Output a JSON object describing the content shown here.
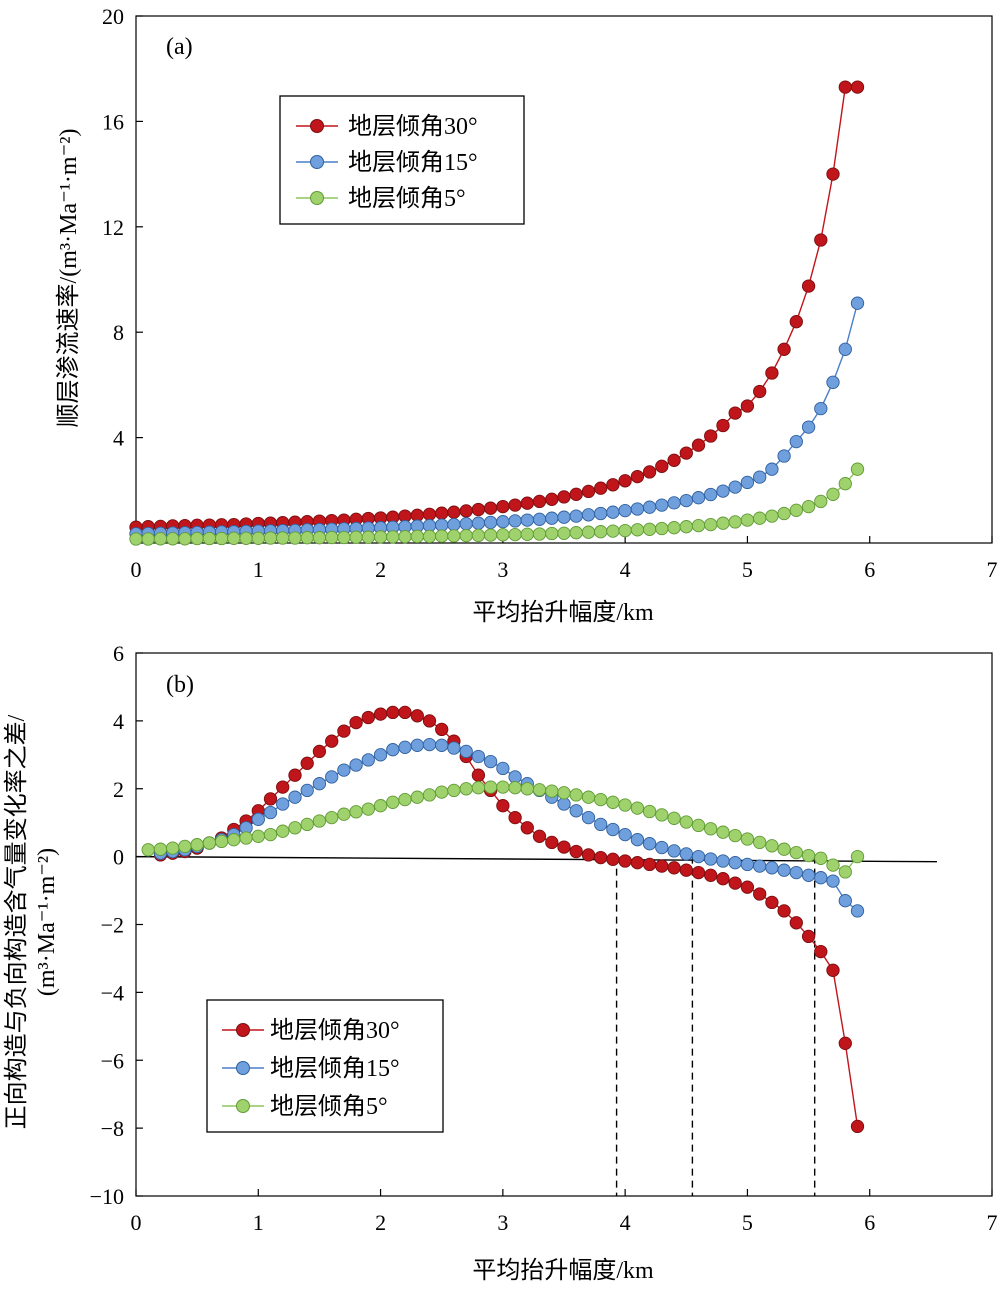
{
  "chart_data": [
    {
      "type": "line",
      "panel_label": "(a)",
      "xlabel": "平均抬升幅度/km",
      "ylabel": "顺层渗流速率/(m³·Ma⁻¹·m⁻²)",
      "xlim": [
        0,
        7
      ],
      "ylim": [
        0,
        20
      ],
      "xticks": [
        "0",
        "1",
        "2",
        "3",
        "4",
        "5",
        "6",
        "7"
      ],
      "yticks": [
        "4",
        "8",
        "12",
        "16",
        "20"
      ],
      "legend_position": "top-left",
      "series": [
        {
          "name": "地层倾角30°",
          "color": "#c0151b",
          "x": [
            0.0,
            0.1,
            0.2,
            0.3,
            0.4,
            0.5,
            0.6,
            0.7,
            0.8,
            0.9,
            1.0,
            1.1,
            1.2,
            1.3,
            1.4,
            1.5,
            1.6,
            1.7,
            1.8,
            1.9,
            2.0,
            2.1,
            2.2,
            2.3,
            2.4,
            2.5,
            2.6,
            2.7,
            2.8,
            2.9,
            3.0,
            3.1,
            3.2,
            3.3,
            3.4,
            3.5,
            3.6,
            3.7,
            3.8,
            3.9,
            4.0,
            4.1,
            4.2,
            4.3,
            4.4,
            4.5,
            4.6,
            4.7,
            4.8,
            4.9,
            5.0,
            5.1,
            5.2,
            5.3,
            5.4,
            5.5,
            5.6,
            5.7,
            5.8,
            5.9
          ],
          "values": [
            0.6,
            0.62,
            0.63,
            0.65,
            0.66,
            0.67,
            0.68,
            0.69,
            0.7,
            0.72,
            0.74,
            0.75,
            0.77,
            0.79,
            0.81,
            0.83,
            0.85,
            0.87,
            0.9,
            0.93,
            0.95,
            0.98,
            1.02,
            1.05,
            1.09,
            1.13,
            1.17,
            1.22,
            1.27,
            1.32,
            1.38,
            1.44,
            1.51,
            1.58,
            1.66,
            1.75,
            1.85,
            1.96,
            2.08,
            2.21,
            2.36,
            2.52,
            2.7,
            2.91,
            3.14,
            3.41,
            3.71,
            4.06,
            4.46,
            4.93,
            5.2,
            5.75,
            6.45,
            7.35,
            8.4,
            9.75,
            11.5,
            14.0,
            17.3,
            17.3
          ]
        },
        {
          "name": "地层倾角15°",
          "color": "#4a7fc8",
          "x": [
            0.0,
            0.1,
            0.2,
            0.3,
            0.4,
            0.5,
            0.6,
            0.7,
            0.8,
            0.9,
            1.0,
            1.1,
            1.2,
            1.3,
            1.4,
            1.5,
            1.6,
            1.7,
            1.8,
            1.9,
            2.0,
            2.1,
            2.2,
            2.3,
            2.4,
            2.5,
            2.6,
            2.7,
            2.8,
            2.9,
            3.0,
            3.1,
            3.2,
            3.3,
            3.4,
            3.5,
            3.6,
            3.7,
            3.8,
            3.9,
            4.0,
            4.1,
            4.2,
            4.3,
            4.4,
            4.5,
            4.6,
            4.7,
            4.8,
            4.9,
            5.0,
            5.1,
            5.2,
            5.3,
            5.4,
            5.5,
            5.6,
            5.7,
            5.8,
            5.9
          ],
          "values": [
            0.35,
            0.36,
            0.37,
            0.38,
            0.39,
            0.4,
            0.41,
            0.42,
            0.43,
            0.44,
            0.45,
            0.46,
            0.47,
            0.48,
            0.5,
            0.51,
            0.52,
            0.54,
            0.55,
            0.57,
            0.58,
            0.6,
            0.62,
            0.64,
            0.66,
            0.68,
            0.7,
            0.73,
            0.75,
            0.78,
            0.81,
            0.84,
            0.87,
            0.9,
            0.94,
            0.98,
            1.02,
            1.07,
            1.12,
            1.17,
            1.23,
            1.29,
            1.36,
            1.44,
            1.52,
            1.61,
            1.72,
            1.84,
            1.97,
            2.12,
            2.3,
            2.5,
            2.8,
            3.3,
            3.85,
            4.4,
            5.1,
            6.1,
            7.35,
            9.1
          ]
        },
        {
          "name": "地层倾角5°",
          "color": "#8cc65a",
          "x": [
            0.0,
            0.1,
            0.2,
            0.3,
            0.4,
            0.5,
            0.6,
            0.7,
            0.8,
            0.9,
            1.0,
            1.1,
            1.2,
            1.3,
            1.4,
            1.5,
            1.6,
            1.7,
            1.8,
            1.9,
            2.0,
            2.1,
            2.2,
            2.3,
            2.4,
            2.5,
            2.6,
            2.7,
            2.8,
            2.9,
            3.0,
            3.1,
            3.2,
            3.3,
            3.4,
            3.5,
            3.6,
            3.7,
            3.8,
            3.9,
            4.0,
            4.1,
            4.2,
            4.3,
            4.4,
            4.5,
            4.6,
            4.7,
            4.8,
            4.9,
            5.0,
            5.1,
            5.2,
            5.3,
            5.4,
            5.5,
            5.6,
            5.7,
            5.8,
            5.9
          ],
          "values": [
            0.15,
            0.15,
            0.16,
            0.16,
            0.16,
            0.17,
            0.17,
            0.17,
            0.18,
            0.18,
            0.18,
            0.19,
            0.19,
            0.19,
            0.2,
            0.2,
            0.21,
            0.21,
            0.22,
            0.22,
            0.23,
            0.23,
            0.24,
            0.25,
            0.25,
            0.26,
            0.27,
            0.28,
            0.29,
            0.3,
            0.31,
            0.32,
            0.33,
            0.34,
            0.36,
            0.37,
            0.39,
            0.41,
            0.43,
            0.45,
            0.47,
            0.5,
            0.52,
            0.55,
            0.58,
            0.62,
            0.66,
            0.7,
            0.75,
            0.8,
            0.87,
            0.94,
            1.02,
            1.12,
            1.24,
            1.38,
            1.58,
            1.85,
            2.25,
            2.8
          ]
        }
      ]
    },
    {
      "type": "line",
      "panel_label": "(b)",
      "xlabel": "平均抬升幅度/km",
      "ylabel_line1": "正向构造与负向构造含气量变化率之差/",
      "ylabel_line2": "(m³·Ma⁻¹·m⁻²)",
      "xlim": [
        0,
        7
      ],
      "ylim": [
        -10,
        6
      ],
      "xticks": [
        "0",
        "1",
        "2",
        "3",
        "4",
        "5",
        "6",
        "7"
      ],
      "yticks": [
        "−10",
        "−8",
        "−6",
        "−4",
        "−2",
        "0",
        "2",
        "4",
        "6"
      ],
      "ytick_values": [
        -10,
        -8,
        -6,
        -4,
        -2,
        0,
        2,
        4,
        6
      ],
      "legend_position": "bottom-left",
      "reference_line": {
        "x": [
          0,
          6.55
        ],
        "y": [
          0,
          -0.15
        ]
      },
      "dashed_lines_x": [
        3.93,
        4.55,
        5.55
      ],
      "series": [
        {
          "name": "地层倾角30°",
          "color": "#c0151b",
          "x": [
            0.2,
            0.3,
            0.4,
            0.5,
            0.6,
            0.7,
            0.8,
            0.9,
            1.0,
            1.1,
            1.2,
            1.3,
            1.4,
            1.5,
            1.6,
            1.7,
            1.8,
            1.9,
            2.0,
            2.1,
            2.2,
            2.3,
            2.4,
            2.5,
            2.6,
            2.7,
            2.8,
            2.9,
            3.0,
            3.1,
            3.2,
            3.3,
            3.4,
            3.5,
            3.6,
            3.7,
            3.8,
            3.9,
            4.0,
            4.1,
            4.2,
            4.3,
            4.4,
            4.5,
            4.6,
            4.7,
            4.8,
            4.9,
            5.0,
            5.1,
            5.2,
            5.3,
            5.4,
            5.5,
            5.6,
            5.7,
            5.8,
            5.9
          ],
          "values": [
            0.05,
            0.1,
            0.15,
            0.25,
            0.4,
            0.55,
            0.8,
            1.05,
            1.35,
            1.7,
            2.05,
            2.4,
            2.75,
            3.1,
            3.4,
            3.7,
            3.95,
            4.1,
            4.2,
            4.25,
            4.25,
            4.15,
            4.0,
            3.75,
            3.4,
            2.95,
            2.4,
            1.95,
            1.5,
            1.15,
            0.85,
            0.6,
            0.42,
            0.28,
            0.15,
            0.05,
            -0.03,
            -0.08,
            -0.13,
            -0.18,
            -0.23,
            -0.28,
            -0.33,
            -0.4,
            -0.47,
            -0.55,
            -0.65,
            -0.78,
            -0.9,
            -1.1,
            -1.35,
            -1.6,
            -1.95,
            -2.35,
            -2.8,
            -3.35,
            -5.5,
            -7.95
          ]
        },
        {
          "name": "地层倾角15°",
          "color": "#4a7fc8",
          "x": [
            0.2,
            0.3,
            0.4,
            0.5,
            0.6,
            0.7,
            0.8,
            0.9,
            1.0,
            1.1,
            1.2,
            1.3,
            1.4,
            1.5,
            1.6,
            1.7,
            1.8,
            1.9,
            2.0,
            2.1,
            2.2,
            2.3,
            2.4,
            2.5,
            2.6,
            2.7,
            2.8,
            2.9,
            3.0,
            3.1,
            3.2,
            3.3,
            3.4,
            3.5,
            3.6,
            3.7,
            3.8,
            3.9,
            4.0,
            4.1,
            4.2,
            4.3,
            4.4,
            4.5,
            4.6,
            4.7,
            4.8,
            4.9,
            5.0,
            5.1,
            5.2,
            5.3,
            5.4,
            5.5,
            5.6,
            5.7,
            5.8,
            5.9
          ],
          "values": [
            0.1,
            0.15,
            0.2,
            0.3,
            0.4,
            0.5,
            0.65,
            0.85,
            1.1,
            1.3,
            1.55,
            1.75,
            1.95,
            2.15,
            2.35,
            2.55,
            2.7,
            2.85,
            3.0,
            3.15,
            3.22,
            3.28,
            3.3,
            3.28,
            3.2,
            3.1,
            2.95,
            2.8,
            2.6,
            2.35,
            2.15,
            1.95,
            1.75,
            1.55,
            1.35,
            1.15,
            0.95,
            0.8,
            0.65,
            0.5,
            0.38,
            0.27,
            0.17,
            0.08,
            0.0,
            -0.07,
            -0.13,
            -0.18,
            -0.23,
            -0.28,
            -0.33,
            -0.4,
            -0.47,
            -0.55,
            -0.62,
            -0.72,
            -1.3,
            -1.6
          ]
        },
        {
          "name": "地层倾角5°",
          "color": "#8cc65a",
          "x": [
            0.1,
            0.2,
            0.3,
            0.4,
            0.5,
            0.6,
            0.7,
            0.8,
            0.9,
            1.0,
            1.1,
            1.2,
            1.3,
            1.4,
            1.5,
            1.6,
            1.7,
            1.8,
            1.9,
            2.0,
            2.1,
            2.2,
            2.3,
            2.4,
            2.5,
            2.6,
            2.7,
            2.8,
            2.9,
            3.0,
            3.1,
            3.2,
            3.3,
            3.4,
            3.5,
            3.6,
            3.7,
            3.8,
            3.9,
            4.0,
            4.1,
            4.2,
            4.3,
            4.4,
            4.5,
            4.6,
            4.7,
            4.8,
            4.9,
            5.0,
            5.1,
            5.2,
            5.3,
            5.4,
            5.5,
            5.6,
            5.7,
            5.8,
            5.9
          ],
          "values": [
            0.2,
            0.22,
            0.25,
            0.3,
            0.35,
            0.4,
            0.45,
            0.5,
            0.55,
            0.6,
            0.65,
            0.75,
            0.85,
            0.95,
            1.05,
            1.15,
            1.25,
            1.32,
            1.4,
            1.5,
            1.6,
            1.68,
            1.75,
            1.82,
            1.9,
            1.95,
            2.0,
            2.03,
            2.05,
            2.05,
            2.03,
            2.0,
            1.97,
            1.93,
            1.88,
            1.82,
            1.75,
            1.68,
            1.6,
            1.52,
            1.43,
            1.33,
            1.23,
            1.13,
            1.02,
            0.92,
            0.82,
            0.72,
            0.62,
            0.52,
            0.42,
            0.32,
            0.22,
            0.12,
            0.03,
            -0.05,
            -0.25,
            -0.45,
            0.0
          ]
        }
      ]
    }
  ]
}
